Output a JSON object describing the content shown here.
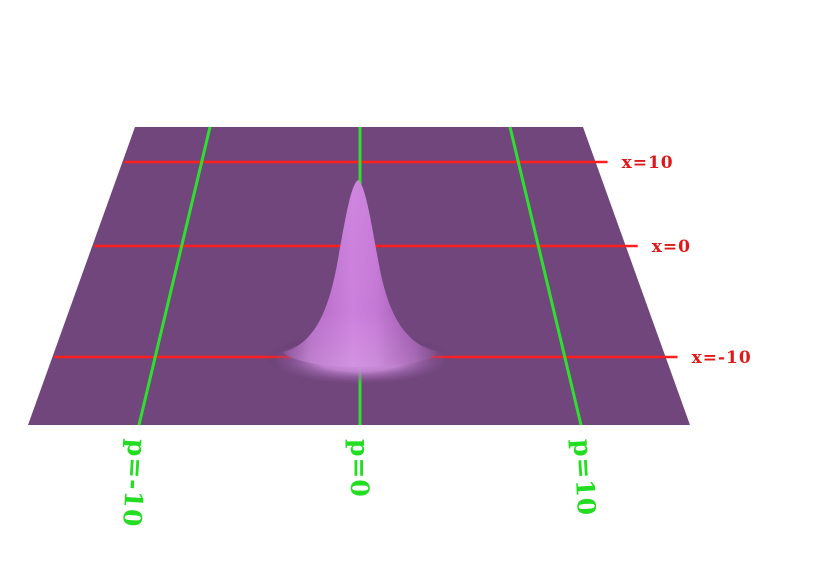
{
  "colors": {
    "background": "#ffffff",
    "plane": "#71467d",
    "peak": "#c77ad8",
    "x_gridline": "#ff1f1f",
    "p_gridline": "#2de02d",
    "x_label": "#e01818",
    "p_label": "#22dd22"
  },
  "x_lines": [
    {
      "value": 10,
      "label": "x=10"
    },
    {
      "value": 0,
      "label": "x=0"
    },
    {
      "value": -10,
      "label": "x=-10"
    }
  ],
  "p_lines": [
    {
      "value": -10,
      "label": "p=-10"
    },
    {
      "value": 0,
      "label": "p=0"
    },
    {
      "value": 10,
      "label": "p=10"
    }
  ],
  "surface": {
    "shape": "single gaussian peak centered at x=0, p=0"
  }
}
